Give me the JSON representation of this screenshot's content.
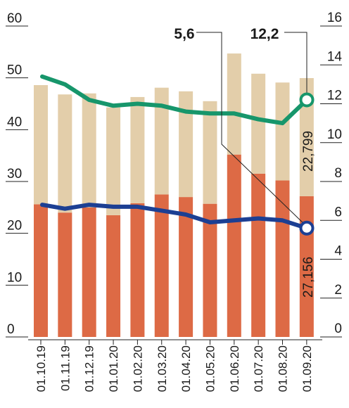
{
  "chart_data": {
    "type": "bar",
    "categories": [
      "01.10.19",
      "01.11.19",
      "01.12.19",
      "01.01.20",
      "01.02.20",
      "01.03.20",
      "01.04.20",
      "01.05.20",
      "01.06.20",
      "01.07.20",
      "01.08.20",
      "01.09.20"
    ],
    "stacked_series": [
      {
        "values": [
          25.6,
          24.0,
          25.0,
          23.5,
          25.8,
          27.5,
          27.0,
          25.7,
          35.2,
          31.5,
          30.2,
          27.156
        ],
        "color": "#dd6a45"
      },
      {
        "values": [
          23.0,
          22.8,
          22.0,
          20.8,
          20.5,
          20.6,
          20.4,
          19.8,
          19.5,
          19.3,
          18.9,
          22.799
        ],
        "color": "#e3ceaa"
      }
    ],
    "line_series": [
      {
        "values": [
          13.4,
          13.0,
          12.2,
          11.9,
          12.0,
          11.9,
          11.6,
          11.5,
          11.5,
          11.2,
          11.0,
          12.2
        ],
        "color": "#17966b",
        "axis": "right"
      },
      {
        "values": [
          6.8,
          6.6,
          6.8,
          6.7,
          6.7,
          6.5,
          6.3,
          5.9,
          6.0,
          6.1,
          6.0,
          5.6
        ],
        "color": "#1c3f93",
        "axis": "right"
      }
    ],
    "left_axis": {
      "min": 0,
      "max": 60,
      "ticks": [
        "0",
        "10",
        "20",
        "30",
        "40",
        "50",
        "60"
      ]
    },
    "right_axis": {
      "min": 0,
      "max": 16,
      "ticks": [
        "0",
        "2",
        "4",
        "6",
        "8",
        "10",
        "12",
        "14",
        "16"
      ]
    },
    "annotations": {
      "green_last": "12,2",
      "blue_last": "5,6",
      "bar_top_last": "22,799",
      "bar_bottom_last": "27,156"
    }
  }
}
